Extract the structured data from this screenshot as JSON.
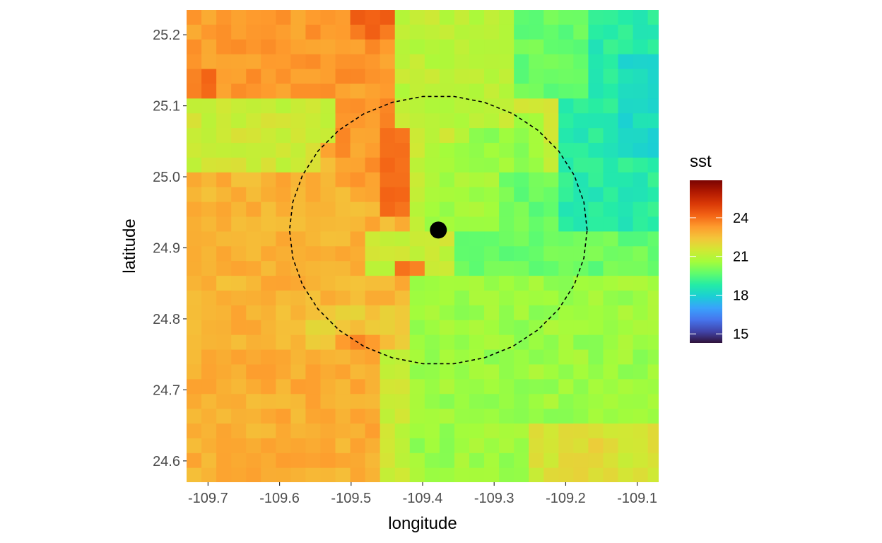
{
  "chart_data": {
    "type": "heatmap",
    "title": "",
    "xlabel": "longitude",
    "ylabel": "latitude",
    "xlim": [
      -109.73,
      -109.07
    ],
    "ylim": [
      24.57,
      25.235
    ],
    "x_ticks": [
      -109.7,
      -109.6,
      -109.5,
      -109.4,
      -109.3,
      -109.2,
      -109.1
    ],
    "x_tick_labels": [
      "-109.7",
      "-109.6",
      "-109.5",
      "-109.4",
      "-109.3",
      "-109.2",
      "-109.1"
    ],
    "y_ticks": [
      24.6,
      24.7,
      24.8,
      24.9,
      25.0,
      25.1,
      25.2
    ],
    "y_tick_labels": [
      "24.6",
      "24.7",
      "24.8",
      "24.9",
      "25.0",
      "25.1",
      "25.2"
    ],
    "grid_resolution_deg": 0.0208,
    "fill_variable": "sst",
    "legend": {
      "title": "sst",
      "placement": "right",
      "breaks": [
        15,
        18,
        21,
        24
      ],
      "break_labels": [
        "15",
        "18",
        "21",
        "24"
      ],
      "limits": [
        14.3,
        26.9
      ],
      "colormap": [
        "#30123b",
        "#4145ab",
        "#4675ed",
        "#39a2fc",
        "#1bcfd4",
        "#24eca6",
        "#61fc6c",
        "#a4fc3b",
        "#d1e834",
        "#f3c63a",
        "#fe9b2d",
        "#f36315",
        "#d93806",
        "#b11901",
        "#7a0402"
      ]
    },
    "sst_regions": [
      {
        "lon": [
          -109.73,
          -109.07
        ],
        "lat": [
          24.57,
          25.235
        ],
        "sst": 21.3
      },
      {
        "lon": [
          -109.73,
          -109.45
        ],
        "lat": [
          24.57,
          24.75
        ],
        "sst": 22.9
      },
      {
        "lon": [
          -109.73,
          -109.42
        ],
        "lat": [
          24.75,
          25.05
        ],
        "sst": 22.8
      },
      {
        "lon": [
          -109.53,
          -109.42
        ],
        "lat": [
          24.98,
          25.12
        ],
        "sst": 23.3
      },
      {
        "lon": [
          -109.45,
          -109.41
        ],
        "lat": [
          24.95,
          25.1
        ],
        "sst": 24.0
      },
      {
        "lon": [
          -109.73,
          -109.44
        ],
        "lat": [
          25.12,
          25.235
        ],
        "sst": 23.3
      },
      {
        "lon": [
          -109.73,
          -109.55
        ],
        "lat": [
          25.01,
          25.1
        ],
        "sst": 21.4
      },
      {
        "lon": [
          -109.73,
          -109.68
        ],
        "lat": [
          25.12,
          25.16
        ],
        "sst": 24.0
      },
      {
        "lon": [
          -109.5,
          -109.44
        ],
        "lat": [
          25.19,
          25.235
        ],
        "sst": 24.1
      },
      {
        "lon": [
          -109.49,
          -109.36
        ],
        "lat": [
          24.86,
          24.93
        ],
        "sst": 21.3
      },
      {
        "lon": [
          -109.41,
          -109.06
        ],
        "lat": [
          24.57,
          24.86
        ],
        "sst": 20.5
      },
      {
        "lon": [
          -109.35,
          -109.06
        ],
        "lat": [
          24.86,
          25.0
        ],
        "sst": 19.8
      },
      {
        "lon": [
          -109.4,
          -109.3
        ],
        "lat": [
          24.93,
          25.05
        ],
        "sst": 20.6
      },
      {
        "lon": [
          -109.33,
          -109.23
        ],
        "lat": [
          25.0,
          25.08
        ],
        "sst": 20.4
      },
      {
        "lon": [
          -109.21,
          -109.06
        ],
        "lat": [
          24.93,
          25.235
        ],
        "sst": 18.8
      },
      {
        "lon": [
          -109.12,
          -109.07
        ],
        "lat": [
          25.03,
          25.17
        ],
        "sst": 18.2
      },
      {
        "lon": [
          -109.28,
          -109.17
        ],
        "lat": [
          25.12,
          25.235
        ],
        "sst": 19.8
      },
      {
        "lon": [
          -109.44,
          -109.28
        ],
        "lat": [
          25.06,
          25.235
        ],
        "sst": 21.1
      },
      {
        "lon": [
          -109.25,
          -109.06
        ],
        "lat": [
          24.57,
          24.66
        ],
        "sst": 21.6
      },
      {
        "lon": [
          -109.2,
          -109.13
        ],
        "lat": [
          24.58,
          24.64
        ],
        "sst": 22.0
      },
      {
        "lon": [
          -109.57,
          -109.42
        ],
        "lat": [
          24.76,
          24.83
        ],
        "sst": 22.3
      },
      {
        "lon": [
          -109.44,
          -109.4
        ],
        "lat": [
          24.86,
          24.885
        ],
        "sst": 23.9
      },
      {
        "lon": [
          -109.52,
          -109.46
        ],
        "lat": [
          24.75,
          24.77
        ],
        "sst": 23.6
      }
    ],
    "point": {
      "lon": -109.378,
      "lat": 24.925
    },
    "circle": {
      "center_lon": -109.378,
      "center_lat": 24.925,
      "radius_km": 21
    }
  }
}
